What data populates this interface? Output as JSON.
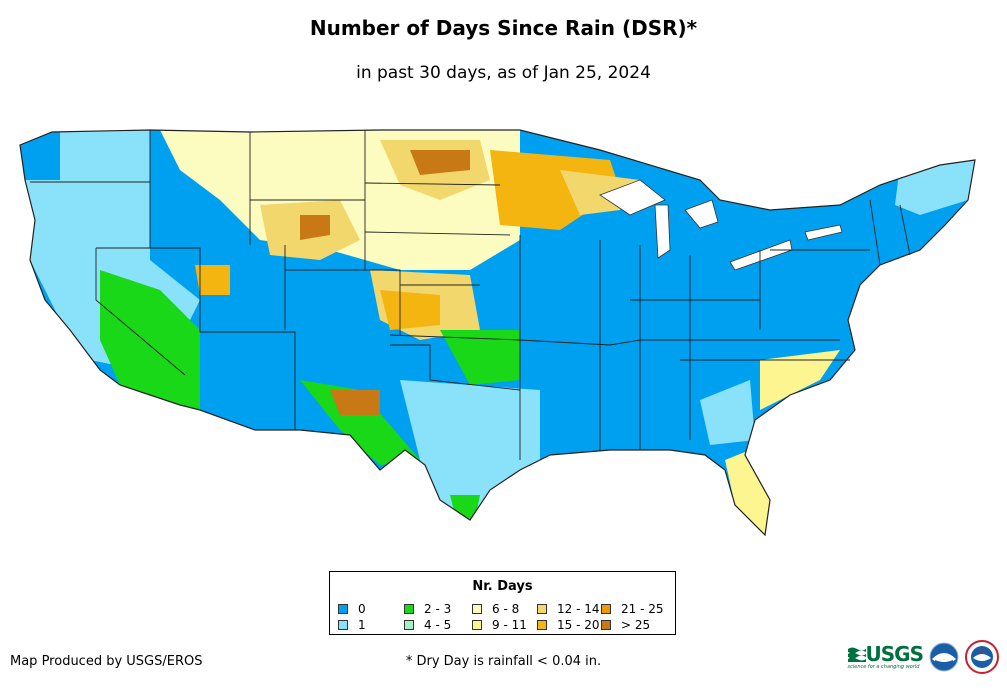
{
  "title": "Number of Days Since Rain (DSR)*",
  "subtitle": "in past 30 days, as of Jan 25, 2024",
  "legend": {
    "title": "Nr. Days",
    "items": [
      {
        "label": "0",
        "color": "#00a0f0"
      },
      {
        "label": "1",
        "color": "#8ae2fa"
      },
      {
        "label": "2 - 3",
        "color": "#18d818"
      },
      {
        "label": "4 - 5",
        "color": "#a6efc2"
      },
      {
        "label": "6 - 8",
        "color": "#fcfcc0"
      },
      {
        "label": "9 - 11",
        "color": "#fcf590"
      },
      {
        "label": "12 - 14",
        "color": "#f2d86c"
      },
      {
        "label": "15 - 20",
        "color": "#f5b510"
      },
      {
        "label": "21 - 25",
        "color": "#eb9b0a"
      },
      {
        "label": "> 25",
        "color": "#c87814"
      }
    ]
  },
  "footer": {
    "credit": "Map Produced by USGS/EROS",
    "note": "* Dry Day is rainfall < 0.04 in."
  },
  "logos": {
    "usgs": "USGS",
    "usgs_tagline": "science for a changing world",
    "noaa": "NOAA",
    "nws": "NWS"
  }
}
